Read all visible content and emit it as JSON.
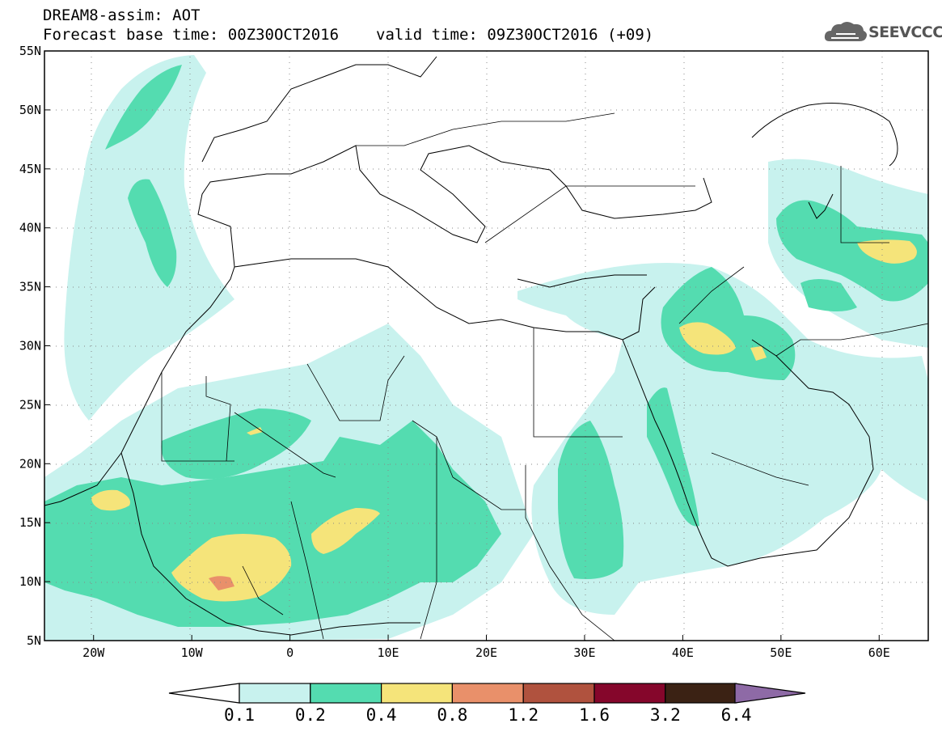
{
  "header": {
    "title": "DREAM8-assim: AOT",
    "base_time": "Forecast base time: 00Z30OCT2016",
    "valid_time": "valid time: 09Z30OCT2016 (+09)"
  },
  "logo": {
    "text": "SEEVCCC",
    "icon": "cloud-logo-icon"
  },
  "map": {
    "lon_range": [
      -25,
      65
    ],
    "lat_range": [
      5,
      55
    ],
    "lat_ticks": [
      "5N",
      "10N",
      "15N",
      "20N",
      "25N",
      "30N",
      "35N",
      "40N",
      "45N",
      "50N",
      "55N"
    ],
    "lon_ticks": [
      "20W",
      "10W",
      "0",
      "10E",
      "20E",
      "30E",
      "40E",
      "50E",
      "60E"
    ],
    "grid": "dotted"
  },
  "colorbar": {
    "levels": [
      "0.1",
      "0.2",
      "0.4",
      "0.8",
      "1.2",
      "1.6",
      "3.2",
      "6.4"
    ],
    "colors": [
      "#c8f2ee",
      "#54dcb0",
      "#f5e47a",
      "#e9906a",
      "#b0523e",
      "#85062b",
      "#3b2214",
      "#8e6aa6"
    ]
  }
}
